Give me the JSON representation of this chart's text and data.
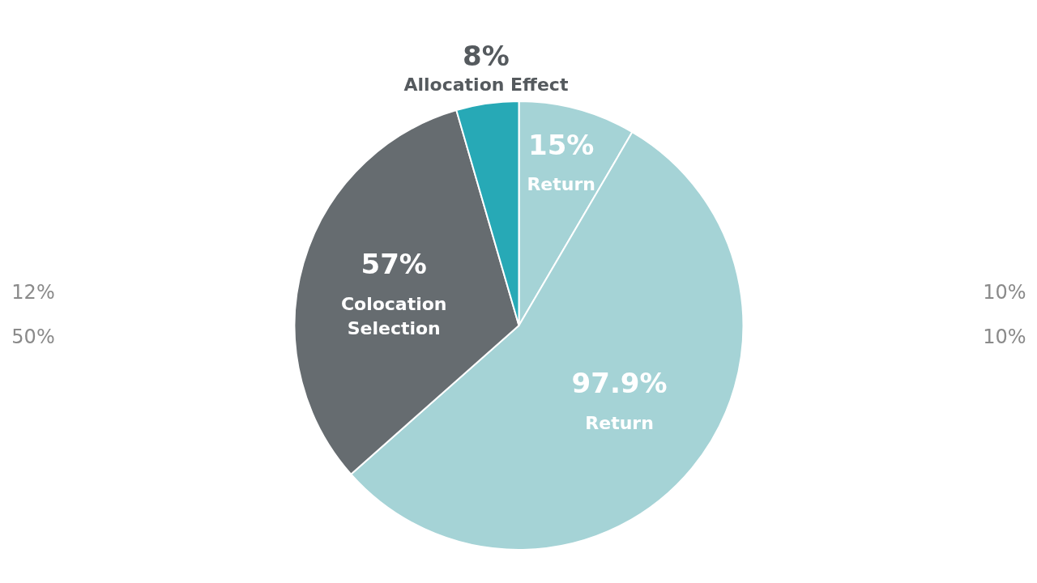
{
  "chart_data": {
    "type": "pie",
    "categories": [
      "Return",
      "Return",
      "Colocation Selection",
      "Allocation Effect"
    ],
    "values": [
      15,
      97.9,
      57,
      8
    ],
    "value_labels": [
      "15%",
      "97.9%",
      "57%",
      "8%"
    ],
    "colors": [
      "#a5d3d6",
      "#a5d3d6",
      "#666c70",
      "#27a9b6"
    ],
    "annotations": [
      "12%",
      "50%",
      "10%",
      "10%"
    ]
  }
}
